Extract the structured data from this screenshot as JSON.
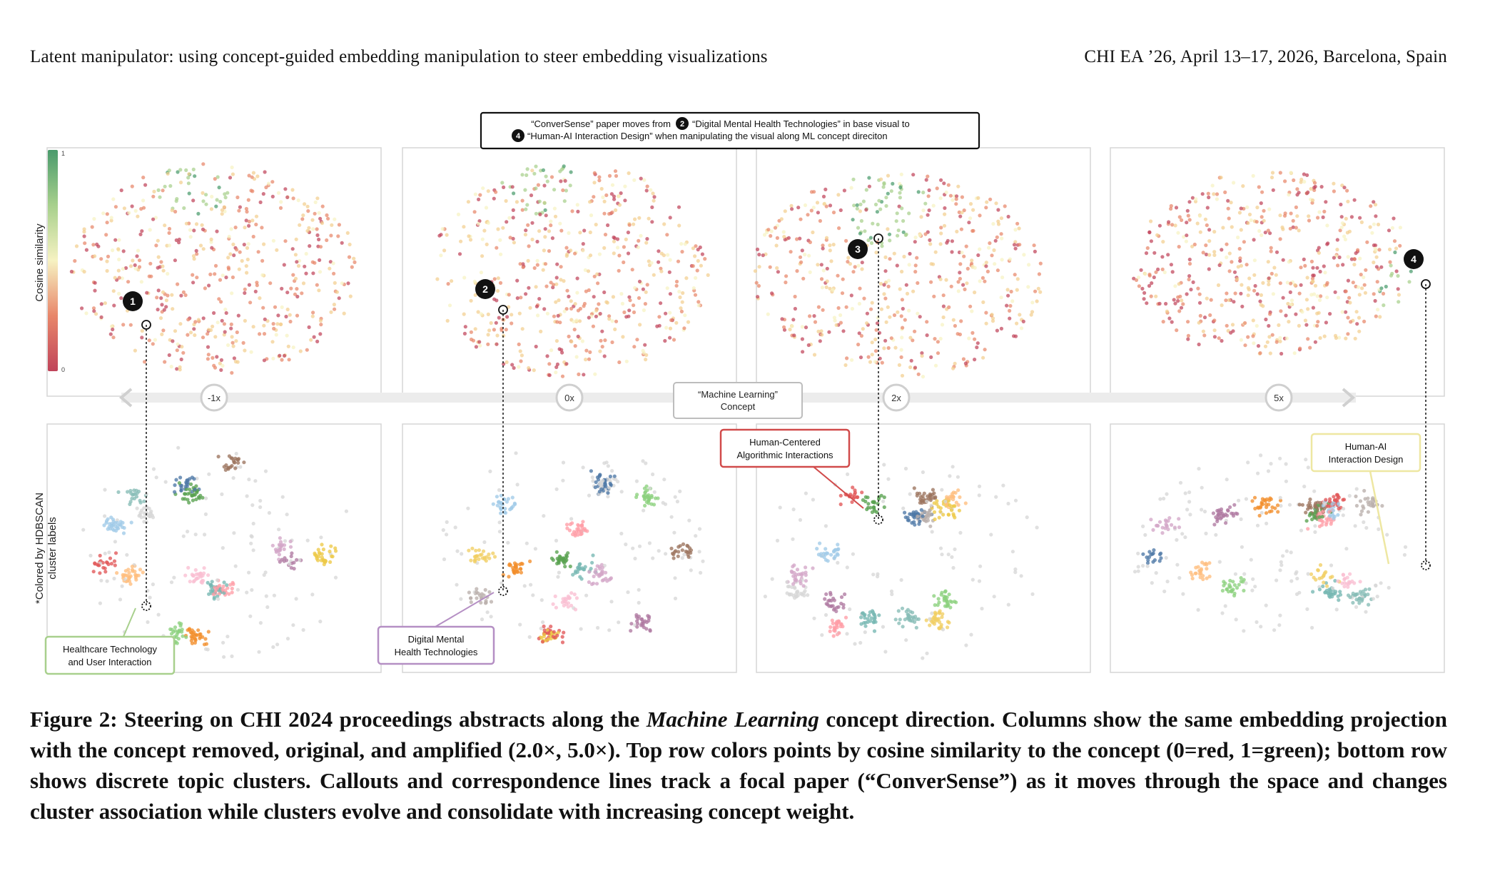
{
  "header": {
    "left": "Latent manipulator: using concept-guided embedding manipulation to steer embedding visualizations",
    "right": "CHI EA ’26, April 13–17, 2026, Barcelona, Spain"
  },
  "figure": {
    "top_callout": {
      "line1_a": "“ConverSense” paper moves from",
      "line1_b": "“Digital Mental  Health Technologies” in base visual to",
      "line2": "“Human-AI Interaction Design” when manipulating the visual along ML concept direciton",
      "badge_from": "2",
      "badge_to": "4"
    },
    "colorbar": {
      "label": "Cosine similarity",
      "max_label": "1",
      "min_label": "0",
      "colors": [
        "#c0445a",
        "#e8866a",
        "#f3cf8f",
        "#f6f2c2",
        "#a7d08c",
        "#4a9b6c"
      ]
    },
    "bottom_row_label": {
      "line1": "*Colored by HDBSCAN",
      "line2": "cluster labels"
    },
    "axis": {
      "concept_label_line1": "“Machine Learning”",
      "concept_label_line2": "Concept",
      "ticks": [
        {
          "label": "-1x",
          "weight": -1
        },
        {
          "label": "0x",
          "weight": 0
        },
        {
          "label": "2x",
          "weight": 2
        },
        {
          "label": "5x",
          "weight": 5
        }
      ]
    },
    "markers": [
      "1",
      "2",
      "3",
      "4"
    ],
    "cluster_callouts": [
      {
        "line1": "Healthcare Technology",
        "line2": "and User Interaction",
        "color": "#a8d08d"
      },
      {
        "line1": "Digital Mental",
        "line2": "Health Technologies",
        "color": "#b58fc4"
      },
      {
        "line1": "Human-Centered",
        "line2": "Algorithmic Interactions",
        "color": "#d14b4b"
      },
      {
        "line1": "Human-AI",
        "line2": "Interaction Design",
        "color": "#eee7a2"
      }
    ],
    "cluster_palette": [
      "#e15759",
      "#f28e2b",
      "#4e79a7",
      "#59a14f",
      "#edc948",
      "#b07aa1",
      "#ff9da7",
      "#9c755f",
      "#bab0ac",
      "#76b7b2",
      "#a0cbe8",
      "#ffbe7d",
      "#8cd17d",
      "#f1ce63",
      "#fabfd2",
      "#d4a6c8",
      "#86bcb6",
      "#d7d7d7"
    ],
    "similarity_colors": [
      "#c0445a",
      "#e8866a",
      "#f3cf8f",
      "#f6f2c2",
      "#a7d08c",
      "#4a9b6c"
    ]
  },
  "caption": {
    "prefix": "Figure 2: Steering on CHI 2024 proceedings abstracts along the ",
    "italic": "Machine Learning",
    "suffix": " concept direction. Columns show the same embedding projection with the concept removed, original, and amplified (2.0×, 5.0×). Top row colors points by cosine similarity to the concept (0=red, 1=green); bottom row shows discrete topic clusters. Callouts and correspondence lines track a focal paper (“ConverSense”) as it moves through the space and changes cluster association while clusters evolve and consolidate with increasing concept weight."
  }
}
